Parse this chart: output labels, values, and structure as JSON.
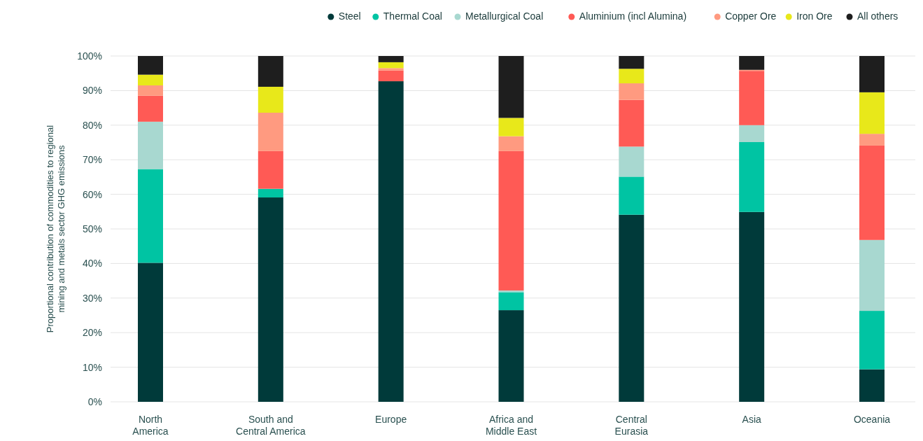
{
  "chart_data": {
    "type": "bar",
    "stacked": true,
    "ylabel": "Proportional contribution of commodities to regional\nmining and metals sector GHG emissions",
    "categories": [
      "North\nAmerica",
      "South and\nCentral America",
      "Europe",
      "Africa and\nMiddle East",
      "Central\nEurasia",
      "Asia",
      "Oceania"
    ],
    "series": [
      {
        "name": "Steel",
        "color": "#003a3a",
        "values": [
          40.2,
          59.1,
          92.7,
          26.5,
          54.1,
          54.9,
          9.4
        ]
      },
      {
        "name": "Thermal Coal",
        "color": "#00c4a3",
        "values": [
          27.1,
          2.5,
          0,
          5.2,
          11.0,
          20.2,
          16.9
        ]
      },
      {
        "name": "Metallurgical Coal",
        "color": "#a8d8d0",
        "values": [
          13.7,
          0,
          0,
          0.5,
          8.7,
          4.9,
          20.5
        ]
      },
      {
        "name": "Aluminium (incl Alumina)",
        "color": "#ff5a55",
        "values": [
          7.5,
          10.9,
          3.1,
          40.3,
          13.5,
          15.7,
          27.3
        ]
      },
      {
        "name": "Copper Ore",
        "color": "#ff9a80",
        "values": [
          3.0,
          11.1,
          0.7,
          4.3,
          4.8,
          0.3,
          3.4
        ]
      },
      {
        "name": "Iron Ore",
        "color": "#e8e81a",
        "values": [
          3.1,
          7.5,
          1.7,
          5.3,
          4.2,
          0,
          12.0
        ]
      },
      {
        "name": "All others",
        "color": "#1e1e1e",
        "values": [
          5.4,
          8.9,
          1.8,
          17.9,
          3.7,
          4.0,
          10.5
        ]
      }
    ],
    "ylim": [
      0,
      100
    ],
    "yticks": [
      {
        "value": 0,
        "label": "0%"
      },
      {
        "value": 10,
        "label": "10%"
      },
      {
        "value": 20,
        "label": "20%"
      },
      {
        "value": 30,
        "label": "30%"
      },
      {
        "value": 40,
        "label": "40%"
      },
      {
        "value": 50,
        "label": "50%"
      },
      {
        "value": 60,
        "label": "60%"
      },
      {
        "value": 70,
        "label": "70%"
      },
      {
        "value": 80,
        "label": "80%"
      },
      {
        "value": 90,
        "label": "90%"
      },
      {
        "value": 100,
        "label": "100%"
      }
    ],
    "grid": "y",
    "legend": "top"
  }
}
